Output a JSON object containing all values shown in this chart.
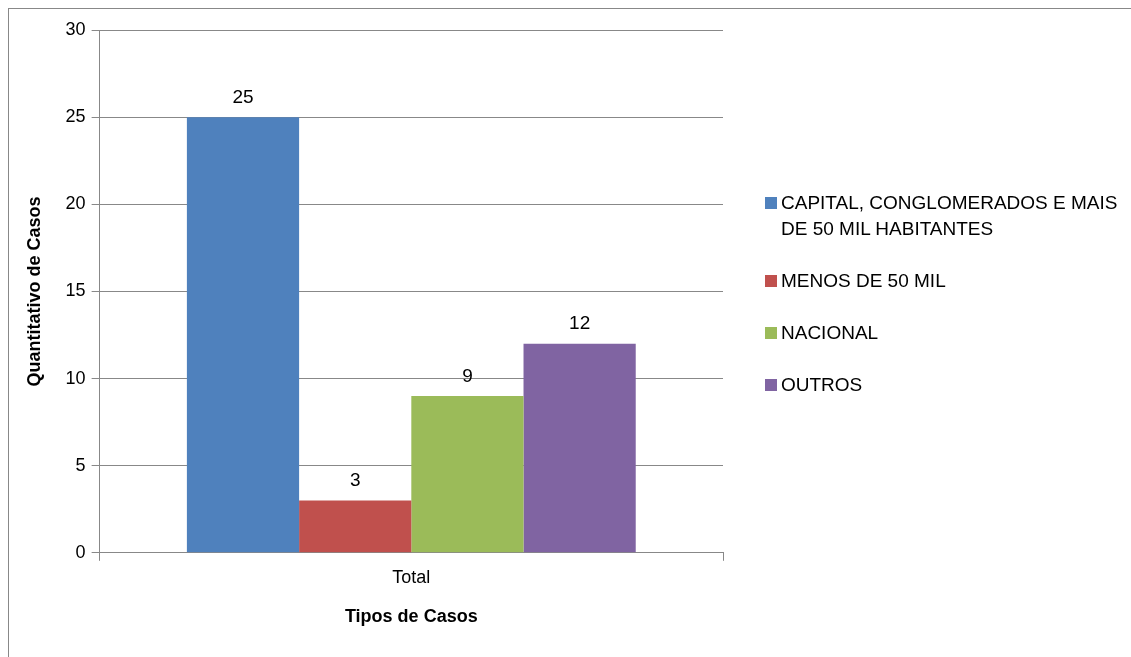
{
  "chart_data": {
    "type": "bar",
    "xlabel": "Tipos de Casos",
    "ylabel": "Quantitativo de Casos",
    "categories": [
      "Total"
    ],
    "series": [
      {
        "name": "CAPITAL, CONGLOMERADOS E MAIS DE 50 MIL HABITANTES",
        "color": "#4f81bd",
        "values": [
          25
        ]
      },
      {
        "name": "MENOS DE 50 MIL",
        "color": "#c0504d",
        "values": [
          3
        ]
      },
      {
        "name": "NACIONAL",
        "color": "#9bbb59",
        "values": [
          9
        ]
      },
      {
        "name": "OUTROS",
        "color": "#8064a2",
        "values": [
          12
        ]
      }
    ],
    "ylim": [
      0,
      30
    ],
    "yticks": [
      0,
      5,
      10,
      15,
      20,
      25,
      30
    ],
    "grid": "y",
    "legend": "right",
    "data_labels": true
  }
}
